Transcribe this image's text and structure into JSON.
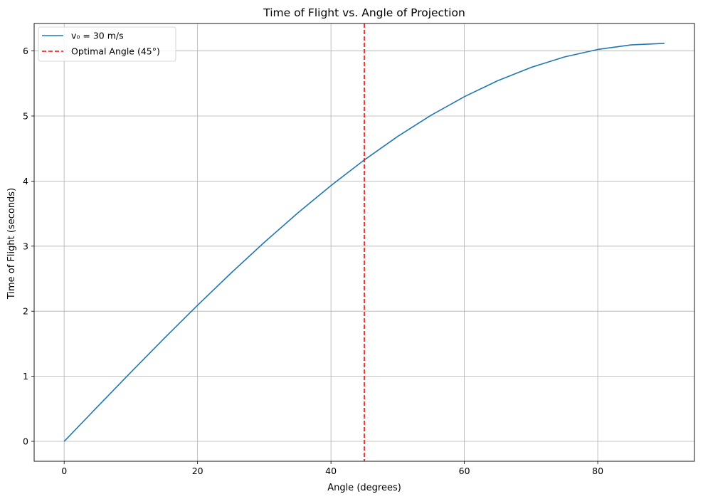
{
  "chart_data": {
    "type": "line",
    "title": "Time of Flight vs. Angle of Projection",
    "xlabel": "Angle (degrees)",
    "ylabel": "Time of Flight (seconds)",
    "xlim": [
      -4.5,
      94.5
    ],
    "ylim": [
      -0.306,
      6.422
    ],
    "xticks": [
      0,
      20,
      40,
      60,
      80
    ],
    "yticks": [
      0,
      1,
      2,
      3,
      4,
      5,
      6
    ],
    "grid": true,
    "legend_position": "top-left",
    "series": [
      {
        "name": "v₀ = 30 m/s",
        "color": "#1f77b4",
        "style": "solid",
        "x": [
          0,
          5,
          10,
          15,
          20,
          25,
          30,
          35,
          40,
          45,
          50,
          55,
          60,
          65,
          70,
          75,
          80,
          85,
          90
        ],
        "y": [
          0.0,
          0.533,
          1.062,
          1.583,
          2.092,
          2.585,
          3.058,
          3.508,
          3.931,
          4.325,
          4.686,
          5.011,
          5.297,
          5.543,
          5.747,
          5.908,
          6.023,
          6.093,
          6.116
        ]
      }
    ],
    "reference_lines": [
      {
        "name": "Optimal Angle (45°)",
        "orientation": "vertical",
        "x": 45,
        "color": "#ff0000",
        "style": "dashed"
      }
    ]
  }
}
